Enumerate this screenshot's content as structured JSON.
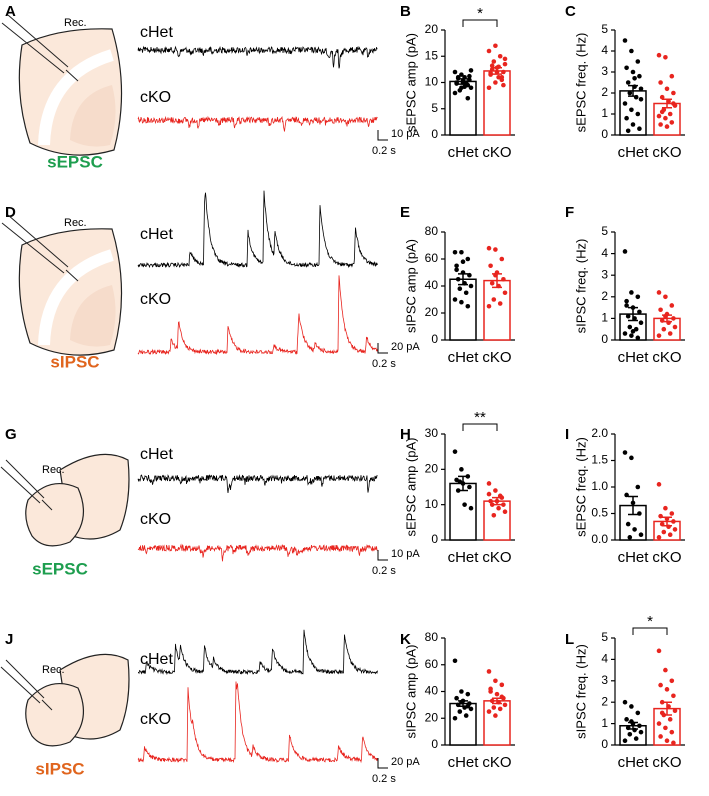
{
  "panels": [
    {
      "label": "A",
      "rec": "Rec.",
      "event": "sEPSC",
      "event_color": "#1e9e4f",
      "traces": [
        {
          "name": "cHet",
          "color": "#000000"
        },
        {
          "name": "cKO",
          "color": "#e8251f"
        }
      ],
      "scale_y": "10 pA",
      "scale_x": "0.2 s"
    },
    {
      "label": "D",
      "rec": "Rec.",
      "event": "sIPSC",
      "event_color": "#e0651e",
      "traces": [
        {
          "name": "cHet",
          "color": "#000000"
        },
        {
          "name": "cKO",
          "color": "#e8251f"
        }
      ],
      "scale_y": "20 pA",
      "scale_x": "0.2 s"
    },
    {
      "label": "G",
      "rec": "Rec.",
      "event": "sEPSC",
      "event_color": "#1e9e4f",
      "traces": [
        {
          "name": "cHet",
          "color": "#000000"
        },
        {
          "name": "cKO",
          "color": "#e8251f"
        }
      ],
      "scale_y": "10 pA",
      "scale_x": "0.2 s"
    },
    {
      "label": "J",
      "rec": "Rec.",
      "event": "sIPSC",
      "event_color": "#e0651e",
      "traces": [
        {
          "name": "cHet",
          "color": "#000000"
        },
        {
          "name": "cKO",
          "color": "#e8251f"
        }
      ],
      "scale_y": "20 pA",
      "scale_x": "0.2 s"
    }
  ],
  "chart_data": [
    {
      "type": "bar",
      "panel": "B",
      "ylabel": "sEPSC amp (pA)",
      "categories": [
        "cHet",
        "cKO"
      ],
      "colors": [
        "#000000",
        "#e8251f"
      ],
      "values": [
        10.2,
        12.2
      ],
      "errors": [
        0.5,
        0.6
      ],
      "points": [
        [
          8,
          9,
          9.5,
          10,
          10,
          10.5,
          11,
          11,
          9,
          8.5,
          10,
          12,
          11.5,
          7,
          9.8,
          10.3,
          11.2,
          10.8,
          9.2,
          12.3
        ],
        [
          9,
          10,
          11,
          11.5,
          12,
          12,
          12.5,
          13,
          13.5,
          14,
          15,
          16,
          17,
          10.5,
          11.8,
          12.8,
          9.5,
          13.2,
          11,
          14.5
        ]
      ],
      "ylim": [
        0,
        20
      ],
      "yticks": [
        0,
        5,
        10,
        15,
        20
      ],
      "significance": "*"
    },
    {
      "type": "bar",
      "panel": "C",
      "ylabel": "sEPSC freq. (Hz)",
      "categories": [
        "cHet",
        "cKO"
      ],
      "colors": [
        "#000000",
        "#e8251f"
      ],
      "values": [
        2.1,
        1.5
      ],
      "errors": [
        0.25,
        0.2
      ],
      "points": [
        [
          4.5,
          4,
          3.5,
          3.2,
          3,
          2.8,
          2.5,
          2.3,
          2.2,
          2,
          1.8,
          1.5,
          1.2,
          1,
          0.8,
          0.5,
          0.3,
          0.2,
          2.7,
          1.7
        ],
        [
          3.8,
          3.7,
          2.8,
          2.5,
          2.2,
          2,
          1.8,
          1.6,
          1.4,
          1.2,
          1,
          0.9,
          0.8,
          0.6,
          0.5,
          0.4,
          1.5,
          1.1
        ]
      ],
      "ylim": [
        0,
        5
      ],
      "yticks": [
        0,
        1,
        2,
        3,
        4,
        5
      ]
    },
    {
      "type": "bar",
      "panel": "E",
      "ylabel": "sIPSC amp (pA)",
      "categories": [
        "cHet",
        "cKO"
      ],
      "colors": [
        "#000000",
        "#e8251f"
      ],
      "values": [
        45,
        44
      ],
      "errors": [
        4,
        5
      ],
      "points": [
        [
          65,
          65,
          60,
          55,
          50,
          48,
          45,
          42,
          40,
          38,
          35,
          30,
          28,
          25,
          52,
          58
        ],
        [
          68,
          67,
          60,
          55,
          50,
          45,
          42,
          40,
          35,
          30,
          27,
          25,
          48
        ]
      ],
      "ylim": [
        0,
        80
      ],
      "yticks": [
        0,
        20,
        40,
        60,
        80
      ]
    },
    {
      "type": "bar",
      "panel": "F",
      "ylabel": "sIPSC freq. (Hz)",
      "categories": [
        "cHet",
        "cKO"
      ],
      "colors": [
        "#000000",
        "#e8251f"
      ],
      "values": [
        1.2,
        1.0
      ],
      "errors": [
        0.3,
        0.15
      ],
      "points": [
        [
          4.1,
          2.2,
          2,
          1.8,
          1.5,
          1.3,
          1.1,
          1,
          0.8,
          0.6,
          0.5,
          0.3,
          0.2,
          0.1,
          1.6,
          0.4
        ],
        [
          2.2,
          2,
          1.6,
          1.4,
          1.2,
          1,
          0.9,
          0.8,
          0.6,
          0.5,
          0.3,
          0.2,
          1.1
        ]
      ],
      "ylim": [
        0,
        5
      ],
      "yticks": [
        0,
        1,
        2,
        3,
        4,
        5
      ]
    },
    {
      "type": "bar",
      "panel": "H",
      "ylabel": "sEPSC amp (pA)",
      "categories": [
        "cHet",
        "cKO"
      ],
      "colors": [
        "#000000",
        "#e8251f"
      ],
      "values": [
        16,
        11
      ],
      "errors": [
        2,
        1
      ],
      "points": [
        [
          25,
          20,
          18,
          17,
          16,
          15,
          14,
          10,
          9,
          16.5
        ],
        [
          16,
          14,
          12,
          11,
          11,
          10,
          10,
          9,
          8,
          7,
          12.5,
          13
        ]
      ],
      "ylim": [
        0,
        30
      ],
      "yticks": [
        0,
        10,
        20,
        30
      ],
      "significance": "**"
    },
    {
      "type": "bar",
      "panel": "I",
      "ylabel": "sEPSC freq. (Hz)",
      "categories": [
        "cHet",
        "cKO"
      ],
      "colors": [
        "#000000",
        "#e8251f"
      ],
      "values": [
        0.65,
        0.35
      ],
      "errors": [
        0.17,
        0.08
      ],
      "points": [
        [
          1.65,
          1.55,
          1.0,
          0.85,
          0.7,
          0.5,
          0.3,
          0.2,
          0.1,
          0.05
        ],
        [
          1.05,
          0.6,
          0.5,
          0.45,
          0.4,
          0.35,
          0.3,
          0.25,
          0.2,
          0.15,
          0.1,
          0.05
        ]
      ],
      "ylim": [
        0,
        2
      ],
      "yticks": [
        {
          "value": 0,
          "label": "0.0"
        },
        0.5,
        {
          "value": 1,
          "label": "1.0"
        },
        1.5,
        {
          "value": 2,
          "label": "2.0"
        }
      ]
    },
    {
      "type": "bar",
      "panel": "K",
      "ylabel": "sIPSC amp (pA)",
      "categories": [
        "cHet",
        "cKO"
      ],
      "colors": [
        "#000000",
        "#e8251f"
      ],
      "values": [
        31,
        33
      ],
      "errors": [
        2,
        2
      ],
      "points": [
        [
          63,
          40,
          38,
          35,
          33,
          31,
          30,
          28,
          27,
          25,
          22,
          20,
          32,
          29
        ],
        [
          55,
          48,
          45,
          40,
          38,
          35,
          33,
          32,
          30,
          28,
          27,
          25,
          22,
          36,
          42
        ]
      ],
      "ylim": [
        0,
        80
      ],
      "yticks": [
        0,
        20,
        40,
        60,
        80
      ]
    },
    {
      "type": "bar",
      "panel": "L",
      "ylabel": "sIPSC freq. (Hz)",
      "categories": [
        "cHet",
        "cKO"
      ],
      "colors": [
        "#000000",
        "#e8251f"
      ],
      "values": [
        0.9,
        1.7
      ],
      "errors": [
        0.15,
        0.3
      ],
      "points": [
        [
          2,
          1.8,
          1.5,
          1.2,
          1,
          0.9,
          0.8,
          0.7,
          0.6,
          0.5,
          0.3,
          0.2,
          1.1
        ],
        [
          4.4,
          3.5,
          3,
          2.8,
          2.6,
          2.3,
          2,
          1.8,
          1.6,
          1.4,
          1.2,
          1,
          0.8,
          0.6,
          0.4,
          0.2,
          0.1,
          1.5
        ]
      ],
      "ylim": [
        0,
        5
      ],
      "yticks": [
        0,
        1,
        2,
        3,
        4,
        5
      ],
      "significance": "*"
    }
  ]
}
